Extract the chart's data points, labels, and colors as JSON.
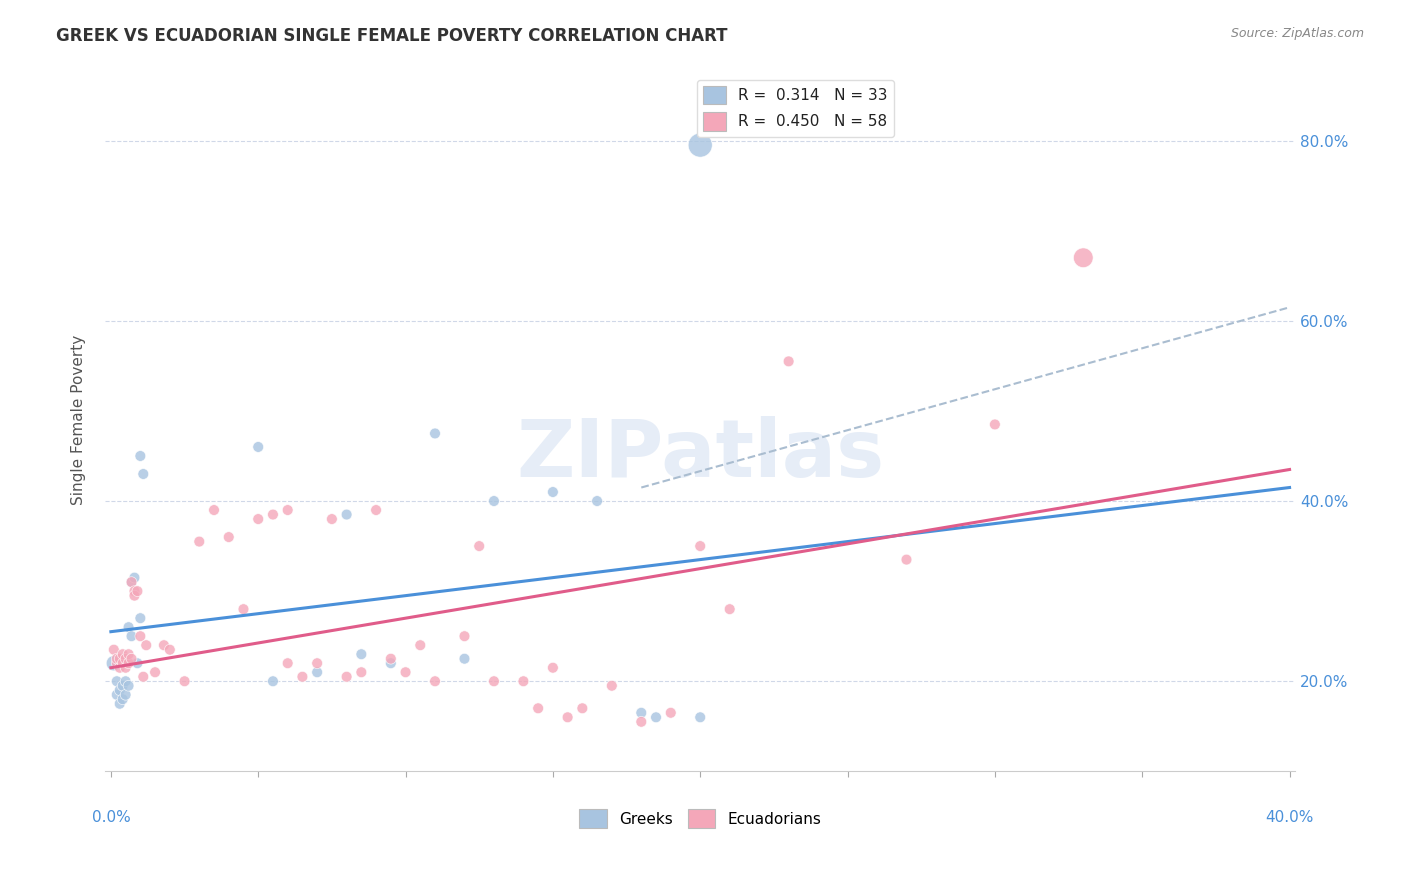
{
  "title": "GREEK VS ECUADORIAN SINGLE FEMALE POVERTY CORRELATION CHART",
  "source": "Source: ZipAtlas.com",
  "ylabel": "Single Female Poverty",
  "legend_greek_r": "0.314",
  "legend_greek_n": "33",
  "legend_ecu_r": "0.450",
  "legend_ecu_n": "58",
  "greek_color": "#a8c4e0",
  "ecu_color": "#f4a7b9",
  "greek_line_color": "#4a90d9",
  "ecu_line_color": "#e05c8a",
  "dashed_line_color": "#aabdd0",
  "watermark": "ZIPatlas",
  "xlim": [
    0.0,
    0.4
  ],
  "ylim": [
    0.1,
    0.88
  ],
  "ytick_vals": [
    0.2,
    0.4,
    0.6,
    0.8
  ],
  "ytick_labels": [
    "20.0%",
    "40.0%",
    "60.0%",
    "80.0%"
  ],
  "greek_line": {
    "x0": 0.0,
    "y0": 0.255,
    "x1": 0.4,
    "y1": 0.415
  },
  "ecu_line": {
    "x0": 0.0,
    "y0": 0.215,
    "x1": 0.4,
    "y1": 0.435
  },
  "dashed_line": {
    "x0": 0.18,
    "y0": 0.415,
    "x1": 0.4,
    "y1": 0.615
  },
  "greek_points": [
    [
      0.001,
      0.22
    ],
    [
      0.002,
      0.185
    ],
    [
      0.002,
      0.2
    ],
    [
      0.003,
      0.175
    ],
    [
      0.003,
      0.19
    ],
    [
      0.004,
      0.18
    ],
    [
      0.004,
      0.195
    ],
    [
      0.005,
      0.185
    ],
    [
      0.005,
      0.2
    ],
    [
      0.006,
      0.195
    ],
    [
      0.006,
      0.26
    ],
    [
      0.007,
      0.25
    ],
    [
      0.007,
      0.31
    ],
    [
      0.008,
      0.315
    ],
    [
      0.009,
      0.22
    ],
    [
      0.01,
      0.27
    ],
    [
      0.01,
      0.45
    ],
    [
      0.011,
      0.43
    ],
    [
      0.05,
      0.46
    ],
    [
      0.055,
      0.2
    ],
    [
      0.07,
      0.21
    ],
    [
      0.08,
      0.385
    ],
    [
      0.085,
      0.23
    ],
    [
      0.095,
      0.22
    ],
    [
      0.12,
      0.225
    ],
    [
      0.13,
      0.4
    ],
    [
      0.15,
      0.41
    ],
    [
      0.165,
      0.4
    ],
    [
      0.18,
      0.165
    ],
    [
      0.185,
      0.16
    ],
    [
      0.2,
      0.16
    ],
    [
      0.11,
      0.475
    ],
    [
      0.2,
      0.795
    ]
  ],
  "ecu_points": [
    [
      0.001,
      0.235
    ],
    [
      0.002,
      0.22
    ],
    [
      0.002,
      0.225
    ],
    [
      0.003,
      0.215
    ],
    [
      0.003,
      0.225
    ],
    [
      0.004,
      0.22
    ],
    [
      0.004,
      0.23
    ],
    [
      0.005,
      0.215
    ],
    [
      0.005,
      0.225
    ],
    [
      0.006,
      0.22
    ],
    [
      0.006,
      0.23
    ],
    [
      0.007,
      0.225
    ],
    [
      0.007,
      0.31
    ],
    [
      0.008,
      0.3
    ],
    [
      0.008,
      0.295
    ],
    [
      0.009,
      0.3
    ],
    [
      0.01,
      0.25
    ],
    [
      0.011,
      0.205
    ],
    [
      0.012,
      0.24
    ],
    [
      0.015,
      0.21
    ],
    [
      0.018,
      0.24
    ],
    [
      0.02,
      0.235
    ],
    [
      0.025,
      0.2
    ],
    [
      0.03,
      0.355
    ],
    [
      0.035,
      0.39
    ],
    [
      0.04,
      0.36
    ],
    [
      0.045,
      0.28
    ],
    [
      0.05,
      0.38
    ],
    [
      0.055,
      0.385
    ],
    [
      0.06,
      0.39
    ],
    [
      0.06,
      0.22
    ],
    [
      0.065,
      0.205
    ],
    [
      0.07,
      0.22
    ],
    [
      0.075,
      0.38
    ],
    [
      0.08,
      0.205
    ],
    [
      0.085,
      0.21
    ],
    [
      0.09,
      0.39
    ],
    [
      0.095,
      0.225
    ],
    [
      0.1,
      0.21
    ],
    [
      0.105,
      0.24
    ],
    [
      0.11,
      0.2
    ],
    [
      0.12,
      0.25
    ],
    [
      0.125,
      0.35
    ],
    [
      0.13,
      0.2
    ],
    [
      0.14,
      0.2
    ],
    [
      0.145,
      0.17
    ],
    [
      0.15,
      0.215
    ],
    [
      0.155,
      0.16
    ],
    [
      0.16,
      0.17
    ],
    [
      0.17,
      0.195
    ],
    [
      0.18,
      0.155
    ],
    [
      0.19,
      0.165
    ],
    [
      0.2,
      0.35
    ],
    [
      0.21,
      0.28
    ],
    [
      0.23,
      0.555
    ],
    [
      0.27,
      0.335
    ],
    [
      0.3,
      0.485
    ],
    [
      0.33,
      0.67
    ]
  ],
  "greek_sizes": [
    120,
    60,
    60,
    60,
    60,
    60,
    60,
    60,
    60,
    60,
    60,
    60,
    60,
    60,
    60,
    60,
    60,
    60,
    60,
    60,
    60,
    60,
    60,
    60,
    60,
    60,
    60,
    60,
    60,
    60,
    60,
    60,
    300
  ],
  "ecu_sizes": [
    60,
    60,
    60,
    60,
    60,
    60,
    60,
    60,
    60,
    60,
    60,
    60,
    60,
    60,
    60,
    60,
    60,
    60,
    60,
    60,
    60,
    60,
    60,
    60,
    60,
    60,
    60,
    60,
    60,
    60,
    60,
    60,
    60,
    60,
    60,
    60,
    60,
    60,
    60,
    60,
    60,
    60,
    60,
    60,
    60,
    60,
    60,
    60,
    60,
    60,
    60,
    60,
    60,
    60,
    60,
    60,
    60,
    200
  ]
}
